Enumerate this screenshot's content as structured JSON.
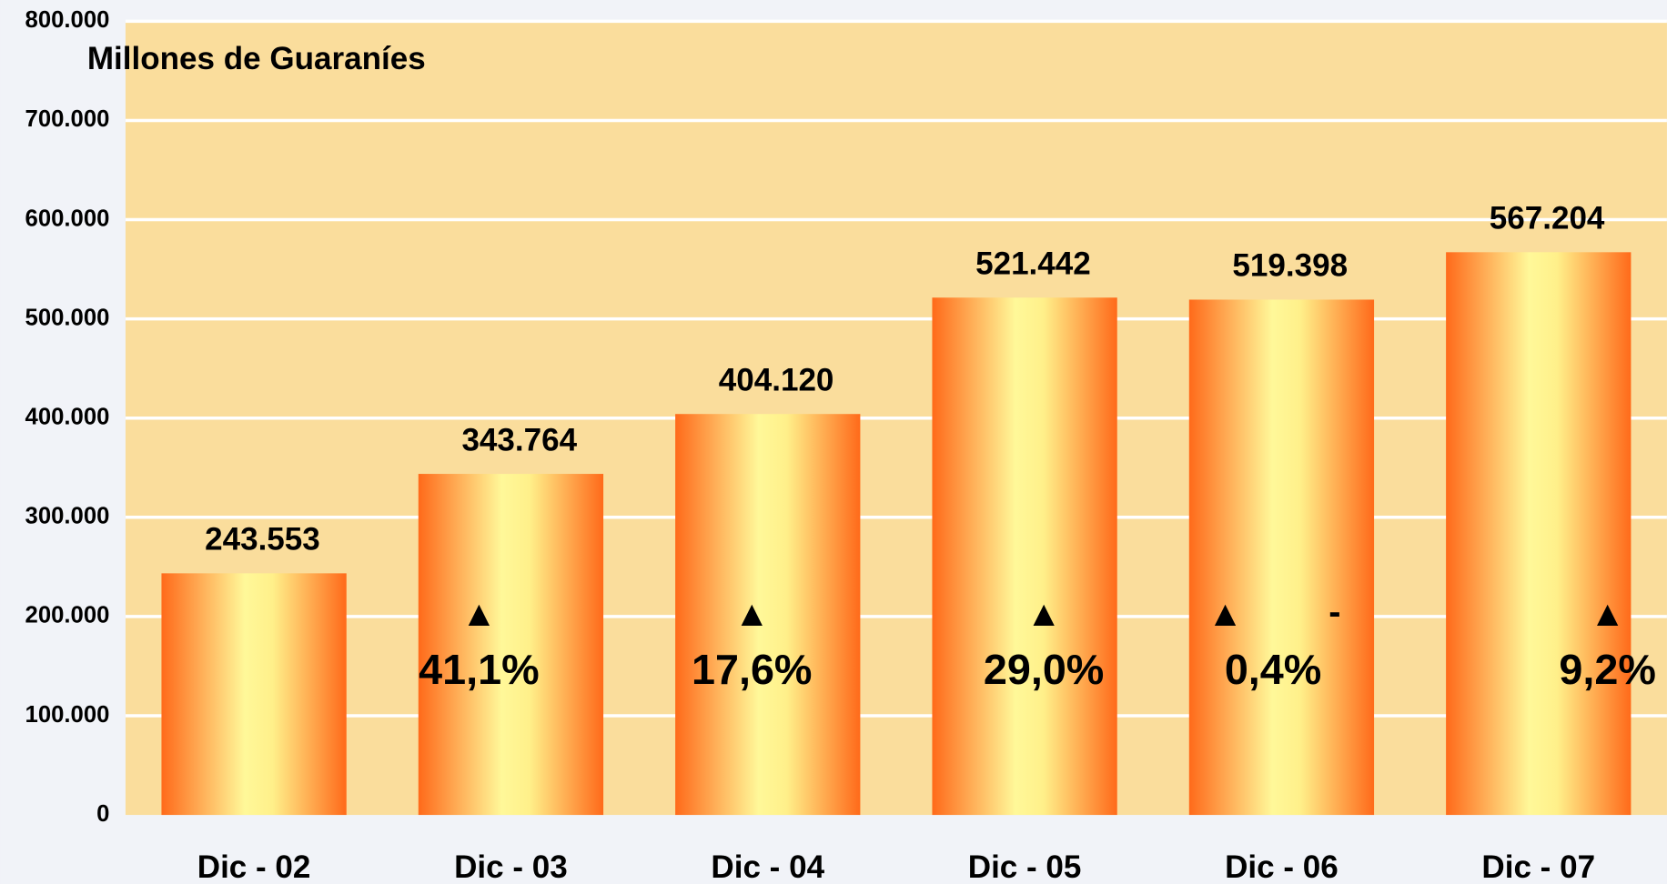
{
  "chart_data": {
    "type": "bar",
    "y_axis_label": "Millones de Guaraníes",
    "categories": [
      "Dic - 02",
      "Dic - 03",
      "Dic - 04",
      "Dic - 05",
      "Dic - 06",
      "Dic - 07"
    ],
    "values": [
      243553,
      343764,
      404120,
      521442,
      519398,
      567204
    ],
    "value_labels": [
      "243.553",
      "343.764",
      "404.120",
      "521.442",
      "519.398",
      "567.204"
    ],
    "color": "#ff6a1a",
    "ylim": [
      0,
      800000
    ],
    "yticks": [
      0,
      {
        "value": 100000,
        "label": "100.000"
      },
      {
        "value": 200000,
        "label": "200.000"
      },
      {
        "value": 300000,
        "label": "300.000"
      },
      {
        "value": 400000,
        "label": "400.000"
      },
      {
        "value": 500000,
        "label": "500.000"
      },
      {
        "value": 600000,
        "label": "600.000"
      },
      {
        "value": 700000,
        "label": "700.000"
      },
      {
        "value": 800000,
        "label": "800.000"
      }
    ],
    "grid": true,
    "annotations": [
      {
        "arrow": "▲",
        "label": "41,1%"
      },
      {
        "arrow": "▲",
        "label": "17,6%"
      },
      {
        "arrow": "▲",
        "label": "29,0%"
      },
      {
        "arrow": "▲",
        "sign": "-",
        "label": "0,4%"
      },
      {
        "arrow": "▲",
        "label": "9,2%"
      }
    ]
  }
}
